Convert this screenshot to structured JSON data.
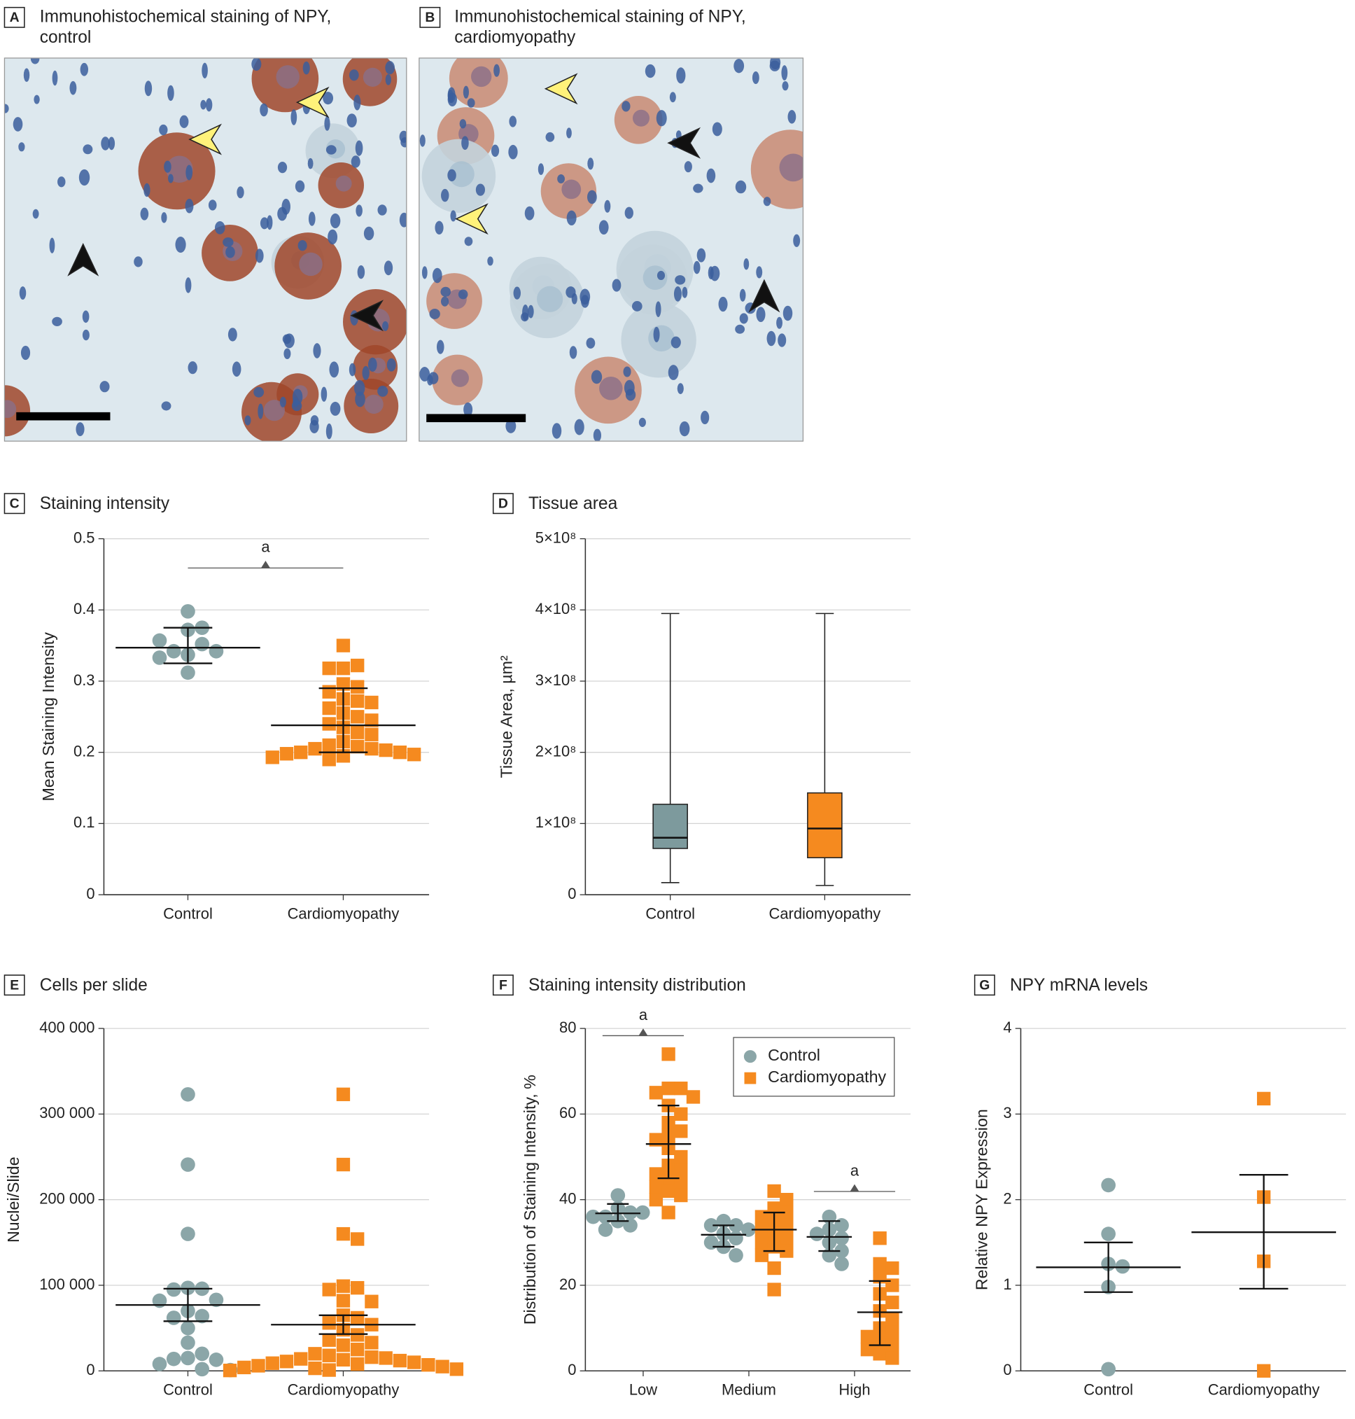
{
  "image_panels": [
    {
      "label": "A",
      "title_lines": [
        "Immunohistochemical staining of NPY,",
        "control"
      ]
    },
    {
      "label": "B",
      "title_lines": [
        "Immunohistochemical staining of NPY,",
        "cardiomyopathy"
      ]
    }
  ],
  "chart_data": [
    {
      "label": "C",
      "type": "dot",
      "title": "Staining intensity",
      "y_label": "Mean Staining Intensity",
      "categories": [
        "Control",
        "Cardiomyopathy"
      ],
      "ylim": [
        0,
        0.5
      ],
      "yticks": [
        0,
        0.1,
        0.2,
        0.3,
        0.4,
        0.5
      ],
      "grid": true,
      "groups": [
        {
          "color": "#8ba6a8",
          "marker": "circle",
          "values": [
            0.337,
            0.352,
            0.398,
            0.372,
            0.342,
            0.312,
            0.375,
            0.342,
            0.357,
            0.333
          ],
          "mean": 0.347,
          "error_low": 0.325,
          "error_high": 0.375
        },
        {
          "color": "#f58a1f",
          "marker": "square",
          "values": [
            0.35,
            0.318,
            0.322,
            0.318,
            0.296,
            0.292,
            0.285,
            0.275,
            0.272,
            0.27,
            0.262,
            0.255,
            0.25,
            0.245,
            0.24,
            0.235,
            0.228,
            0.225,
            0.215,
            0.21,
            0.208,
            0.205,
            0.205,
            0.203,
            0.2,
            0.2,
            0.198,
            0.197,
            0.195,
            0.193,
            0.19
          ],
          "mean": 0.238,
          "error_low": 0.2,
          "error_high": 0.29
        }
      ],
      "annotations": [
        {
          "text": "a",
          "groups": [
            0,
            1
          ]
        }
      ]
    },
    {
      "label": "D",
      "type": "box",
      "title": "Tissue area",
      "y_label": "Tissue Area, µm²",
      "categories": [
        "Control",
        "Cardiomyopathy"
      ],
      "ylim": [
        0,
        500000000
      ],
      "yticks": [
        0,
        {
          "value": 100000000,
          "label": "1×10⁸"
        },
        {
          "value": 200000000,
          "label": "2×10⁸"
        },
        {
          "value": 300000000,
          "label": "3×10⁸"
        },
        {
          "value": 400000000,
          "label": "4×10⁸"
        },
        {
          "value": 500000000,
          "label": "5×10⁸"
        }
      ],
      "grid": true,
      "boxes": [
        {
          "color": "#7d9a9d",
          "min": 17000000,
          "q1": 65000000,
          "median": 80000000,
          "q3": 127000000,
          "max": 395000000
        },
        {
          "color": "#f58a1f",
          "min": 13000000,
          "q1": 52000000,
          "median": 93000000,
          "q3": 143000000,
          "max": 395000000
        }
      ]
    },
    {
      "label": "E",
      "type": "dot",
      "title": "Cells per slide",
      "y_label": "Nuclei/Slide",
      "categories": [
        "Control",
        "Cardiomyopathy"
      ],
      "ylim": [
        0,
        400000
      ],
      "yticks": [
        0,
        {
          "value": 100000,
          "label": "100 000"
        },
        {
          "value": 200000,
          "label": "200 000"
        },
        {
          "value": 300000,
          "label": "300 000"
        },
        {
          "value": 400000,
          "label": "400 000"
        }
      ],
      "grid": true,
      "groups": [
        {
          "color": "#8ba6a8",
          "marker": "circle",
          "values": [
            323000,
            241000,
            160000,
            97000,
            96000,
            95000,
            83000,
            82000,
            70000,
            64000,
            62000,
            50000,
            33000,
            20000,
            15000,
            14000,
            13000,
            8000,
            2000,
            1000
          ],
          "mean": 77000,
          "error_low": 58000,
          "error_high": 96000
        },
        {
          "color": "#f58a1f",
          "marker": "square",
          "values": [
            323000,
            241000,
            160000,
            154000,
            99000,
            97000,
            95000,
            82000,
            81000,
            65000,
            62000,
            56000,
            54000,
            48000,
            42000,
            36000,
            33000,
            30000,
            25000,
            20000,
            18000,
            16000,
            15000,
            14000,
            13000,
            12000,
            11000,
            10000,
            9000,
            8000,
            7000,
            6000,
            5000,
            4000,
            3000,
            2000,
            1000,
            500
          ],
          "mean": 54000,
          "error_low": 43000,
          "error_high": 65000
        }
      ]
    },
    {
      "label": "F",
      "type": "grouped_dot",
      "title": "Staining intensity distribution",
      "y_label": "Distribution of Staining Intensity, %",
      "categories": [
        "Low",
        "Medium",
        "High"
      ],
      "ylim": [
        0,
        80
      ],
      "yticks": [
        0,
        20,
        40,
        60,
        80
      ],
      "grid": true,
      "legend": "upper right",
      "series": [
        {
          "name": "Control",
          "color": "#8ba6a8",
          "marker": "circle",
          "values": [
            [
              41,
              38,
              37,
              36,
              35,
              34,
              33,
              37,
              36
            ],
            [
              35,
              34,
              34,
              33,
              32,
              31,
              30,
              29,
              27
            ],
            [
              36,
              34,
              33,
              32,
              31,
              30,
              28,
              27,
              25
            ]
          ],
          "mean": [
            36.8,
            31.8,
            31.3
          ],
          "error_low": [
            35,
            29,
            28
          ],
          "error_high": [
            39,
            34,
            35
          ]
        },
        {
          "name": "Cardiomyopathy",
          "color": "#f58a1f",
          "marker": "square",
          "values": [
            [
              74,
              66,
              66,
              65,
              64,
              62,
              60,
              58,
              56,
              55,
              54,
              52,
              50,
              48,
              47,
              46,
              45,
              44,
              43,
              42,
              41,
              40,
              37
            ],
            [
              42,
              40,
              38,
              37,
              36,
              35,
              34,
              33,
              32,
              31,
              30,
              29,
              28,
              27,
              24,
              19
            ],
            [
              31,
              25,
              24,
              22,
              20,
              18,
              16,
              14,
              12,
              10,
              9,
              8,
              7,
              6,
              5,
              4,
              3
            ]
          ],
          "mean": [
            53,
            33,
            13.7
          ],
          "error_low": [
            45,
            28,
            6
          ],
          "error_high": [
            62,
            37,
            21
          ]
        }
      ],
      "annotations": [
        {
          "text": "a",
          "category": 0
        },
        {
          "text": "a",
          "category": 2
        }
      ]
    },
    {
      "label": "G",
      "type": "dot",
      "title": "NPY mRNA levels",
      "y_label": "Relative NPY Expression",
      "categories": [
        "Control",
        "Cardiomyopathy"
      ],
      "ylim": [
        0,
        4
      ],
      "yticks": [
        0,
        1,
        2,
        3,
        4
      ],
      "grid": true,
      "groups": [
        {
          "color": "#8ba6a8",
          "marker": "circle",
          "values": [
            2.17,
            1.6,
            1.25,
            1.22,
            0.98,
            0.02
          ],
          "mean": 1.21,
          "error_low": 0.92,
          "error_high": 1.5
        },
        {
          "color": "#f58a1f",
          "marker": "square",
          "values": [
            3.18,
            2.03,
            1.28,
            0.0
          ],
          "mean": 1.62,
          "error_low": 0.96,
          "error_high": 2.29
        }
      ]
    }
  ]
}
